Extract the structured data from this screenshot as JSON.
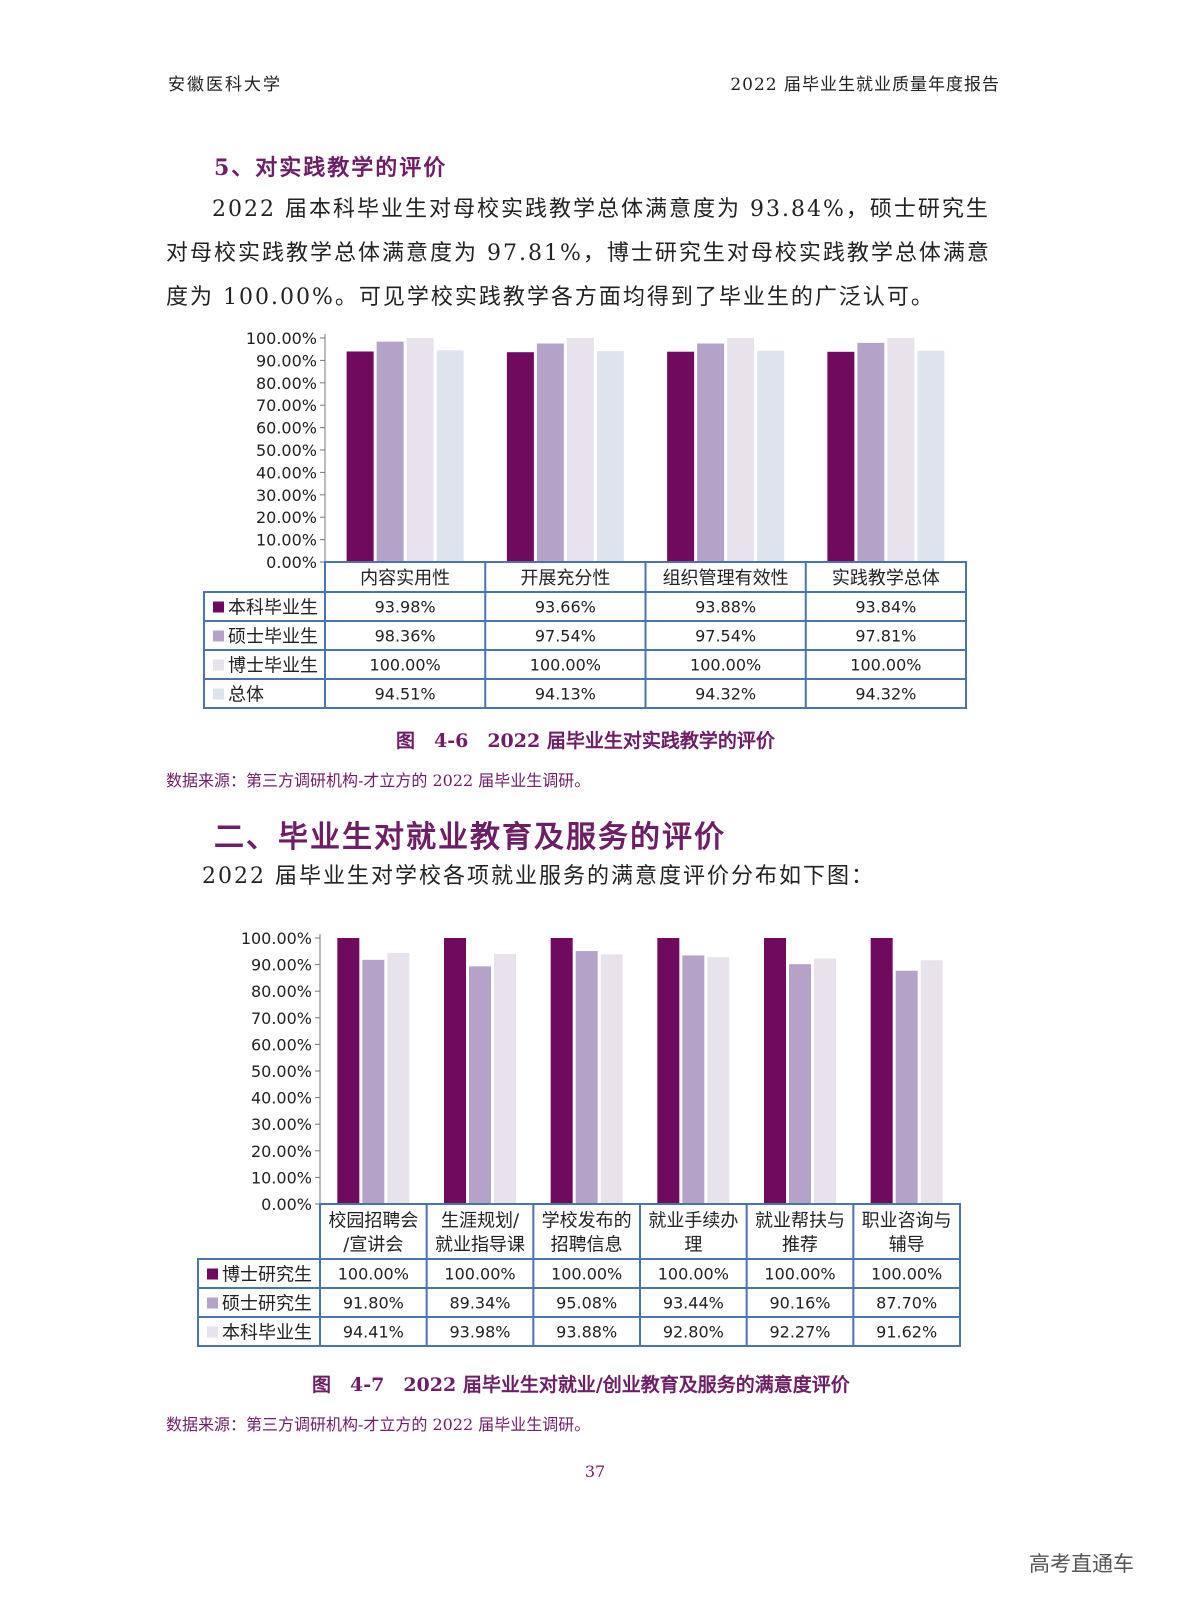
{
  "header": {
    "left": "安徽医科大学",
    "right": "2022 届毕业生就业质量年度报告"
  },
  "section5": {
    "title": "5、对实践教学的评价",
    "paragraph": "2022 届本科毕业生对母校实践教学总体满意度为 93.84%，硕士研究生对母校实践教学总体满意度为 97.81%，博士研究生对母校实践教学总体满意度为 100.00%。可见学校实践教学各方面均得到了毕业生的广泛认可。"
  },
  "figure6": {
    "caption": "图　4-6　2022 届毕业生对实践教学的评价",
    "source": "数据来源：第三方调研机构-才立方的 2022 届毕业生调研。"
  },
  "section2": {
    "title": "二、毕业生对就业教育及服务的评价",
    "paragraph": "2022 届毕业生对学校各项就业服务的满意度评价分布如下图："
  },
  "figure7": {
    "caption": "图　4-7　2022 届毕业生对就业/创业教育及服务的满意度评价",
    "source": "数据来源：第三方调研机构-才立方的 2022 届毕业生调研。"
  },
  "page_number": "37",
  "watermark": "高考直通车",
  "chart_data": [
    {
      "type": "bar",
      "title": "",
      "categories": [
        "内容实用性",
        "开展充分性",
        "组织管理有效性",
        "实践教学总体"
      ],
      "series": [
        {
          "name": "本科毕业生",
          "values": [
            93.98,
            93.66,
            93.88,
            93.84
          ],
          "labels": [
            "93.98%",
            "93.66%",
            "93.88%",
            "93.84%"
          ],
          "color": "#6f0a5f"
        },
        {
          "name": "硕士毕业生",
          "values": [
            98.36,
            97.54,
            97.54,
            97.81
          ],
          "labels": [
            "98.36%",
            "97.54%",
            "97.54%",
            "97.81%"
          ],
          "color": "#b5a2c9"
        },
        {
          "name": "博士毕业生",
          "values": [
            100.0,
            100.0,
            100.0,
            100.0
          ],
          "labels": [
            "100.00%",
            "100.00%",
            "100.00%",
            "100.00%"
          ],
          "color": "#e8e2ed"
        },
        {
          "name": "总体",
          "values": [
            94.51,
            94.13,
            94.32,
            94.32
          ],
          "labels": [
            "94.51%",
            "94.13%",
            "94.32%",
            "94.32%"
          ],
          "color": "#dde4ee"
        }
      ],
      "yticks": [
        "100.00%",
        "90.00%",
        "80.00%",
        "70.00%",
        "60.00%",
        "50.00%",
        "40.00%",
        "30.00%",
        "20.00%",
        "10.00%",
        "0.00%"
      ],
      "ylim": [
        0,
        100
      ],
      "data_table": true
    },
    {
      "type": "bar",
      "title": "",
      "categories": [
        [
          "校园招聘会",
          "/宣讲会"
        ],
        [
          "生涯规划/",
          "就业指导课"
        ],
        [
          "学校发布的",
          "招聘信息"
        ],
        [
          "就业手续办",
          "理"
        ],
        [
          "就业帮扶与",
          "推荐"
        ],
        [
          "职业咨询与",
          "辅导"
        ]
      ],
      "series": [
        {
          "name": "博士研究生",
          "values": [
            100.0,
            100.0,
            100.0,
            100.0,
            100.0,
            100.0
          ],
          "labels": [
            "100.00%",
            "100.00%",
            "100.00%",
            "100.00%",
            "100.00%",
            "100.00%"
          ],
          "color": "#6f0a5f"
        },
        {
          "name": "硕士研究生",
          "values": [
            91.8,
            89.34,
            95.08,
            93.44,
            90.16,
            87.7
          ],
          "labels": [
            "91.80%",
            "89.34%",
            "95.08%",
            "93.44%",
            "90.16%",
            "87.70%"
          ],
          "color": "#b5a2c9"
        },
        {
          "name": "本科毕业生",
          "values": [
            94.41,
            93.98,
            93.88,
            92.8,
            92.27,
            91.62
          ],
          "labels": [
            "94.41%",
            "93.98%",
            "93.88%",
            "92.80%",
            "92.27%",
            "91.62%"
          ],
          "color": "#e8e2ed"
        }
      ],
      "yticks": [
        "100.00%",
        "90.00%",
        "80.00%",
        "70.00%",
        "60.00%",
        "50.00%",
        "40.00%",
        "30.00%",
        "20.00%",
        "10.00%",
        "0.00%"
      ],
      "ylim": [
        0,
        100
      ],
      "data_table": true
    }
  ]
}
